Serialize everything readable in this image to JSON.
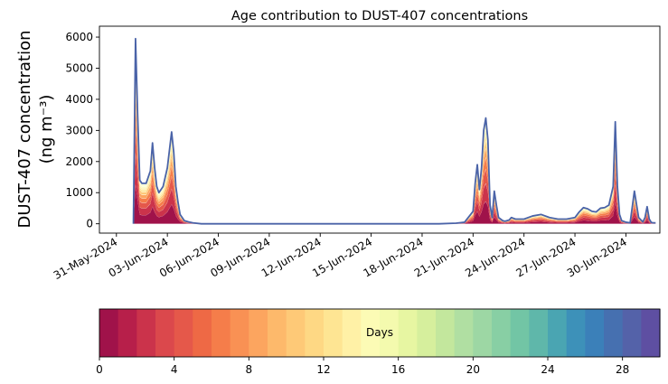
{
  "chart_data": {
    "type": "area",
    "title": "Age contribution to DUST-407 concentrations",
    "ylabel_line1": "DUST-407 concentration",
    "ylabel_line2": "(ng m⁻³)",
    "xlabel": "",
    "xlim": [
      "2024-05-30",
      "2024-07-02"
    ],
    "ylim": [
      -300,
      6350
    ],
    "yticks": [
      0,
      1000,
      2000,
      3000,
      4000,
      5000,
      6000
    ],
    "xticks": [
      "31-May-2024",
      "03-Jun-2024",
      "06-Jun-2024",
      "09-Jun-2024",
      "12-Jun-2024",
      "15-Jun-2024",
      "18-Jun-2024",
      "21-Jun-2024",
      "24-Jun-2024",
      "27-Jun-2024",
      "30-Jun-2024"
    ],
    "grid": false,
    "legend": "none",
    "total_color": "#4a63a8",
    "series": [
      {
        "name": "total",
        "x": [
          "2024-06-01T00:00",
          "2024-06-01T03:00",
          "2024-06-01T06:00",
          "2024-06-01T09:00",
          "2024-06-01T12:00",
          "2024-06-01T18:00",
          "2024-06-02T00:00",
          "2024-06-02T03:00",
          "2024-06-02T06:00",
          "2024-06-02T09:00",
          "2024-06-02T12:00",
          "2024-06-02T18:00",
          "2024-06-03T00:00",
          "2024-06-03T06:00",
          "2024-06-03T09:00",
          "2024-06-03T12:00",
          "2024-06-03T15:00",
          "2024-06-03T18:00",
          "2024-06-04T00:00",
          "2024-06-04T06:00",
          "2024-06-04T12:00",
          "2024-06-05T00:00",
          "2024-06-06T00:00",
          "2024-06-10T00:00",
          "2024-06-15T00:00",
          "2024-06-19T00:00",
          "2024-06-20T00:00",
          "2024-06-20T12:00",
          "2024-06-21T00:00",
          "2024-06-21T03:00",
          "2024-06-21T06:00",
          "2024-06-21T09:00",
          "2024-06-21T12:00",
          "2024-06-21T15:00",
          "2024-06-21T18:00",
          "2024-06-21T21:00",
          "2024-06-22T00:00",
          "2024-06-22T03:00",
          "2024-06-22T06:00",
          "2024-06-22T09:00",
          "2024-06-22T12:00",
          "2024-06-22T15:00",
          "2024-06-22T18:00",
          "2024-06-22T21:00",
          "2024-06-23T00:00",
          "2024-06-23T03:00",
          "2024-06-23T06:00",
          "2024-06-23T12:00",
          "2024-06-24T00:00",
          "2024-06-24T12:00",
          "2024-06-25T00:00",
          "2024-06-25T12:00",
          "2024-06-26T00:00",
          "2024-06-26T12:00",
          "2024-06-27T00:00",
          "2024-06-27T06:00",
          "2024-06-27T12:00",
          "2024-06-27T18:00",
          "2024-06-28T00:00",
          "2024-06-28T06:00",
          "2024-06-28T12:00",
          "2024-06-28T18:00",
          "2024-06-29T00:00",
          "2024-06-29T06:00",
          "2024-06-29T09:00",
          "2024-06-29T12:00",
          "2024-06-29T15:00",
          "2024-06-29T18:00",
          "2024-06-30T00:00",
          "2024-06-30T06:00",
          "2024-06-30T12:00",
          "2024-06-30T18:00",
          "2024-07-01T00:00",
          "2024-07-01T03:00",
          "2024-07-01T06:00",
          "2024-07-01T09:00",
          "2024-07-01T12:00",
          "2024-07-01T15:00",
          "2024-07-01T18:00"
        ],
        "values": [
          0,
          5950,
          3500,
          1400,
          1300,
          1300,
          1700,
          2600,
          1800,
          1200,
          1000,
          1200,
          1800,
          2950,
          2300,
          1200,
          700,
          300,
          100,
          60,
          30,
          0,
          0,
          0,
          0,
          0,
          20,
          50,
          400,
          1300,
          1900,
          1100,
          1800,
          3000,
          3400,
          2700,
          600,
          200,
          1050,
          600,
          200,
          150,
          100,
          80,
          100,
          120,
          200,
          150,
          150,
          250,
          300,
          200,
          150,
          150,
          200,
          380,
          520,
          480,
          400,
          380,
          500,
          520,
          600,
          1200,
          3280,
          1200,
          300,
          100,
          50,
          30,
          1050,
          200,
          60,
          200,
          550,
          150,
          40,
          30,
          30
        ]
      }
    ],
    "colorbar": {
      "label": "Days",
      "min": 0,
      "max": 30,
      "ticks": [
        0,
        4,
        8,
        12,
        16,
        20,
        24,
        28
      ],
      "colors": [
        "#a0124a",
        "#b71f4a",
        "#cb334b",
        "#db484c",
        "#e5584a",
        "#ee6945",
        "#f57d4a",
        "#f99154",
        "#fca55f",
        "#fdb96b",
        "#fec977",
        "#fed884",
        "#fee593",
        "#fff1a6",
        "#fcfbb5",
        "#f4faae",
        "#e7f6a2",
        "#d6ef9d",
        "#c3e79d",
        "#b0dfa2",
        "#9dd7a4",
        "#88cfa4",
        "#72c5a5",
        "#5fb7aa",
        "#4aa5b2",
        "#3d91b9",
        "#3b80b9",
        "#4670b0",
        "#5462a9",
        "#5e4fa2"
      ]
    }
  }
}
